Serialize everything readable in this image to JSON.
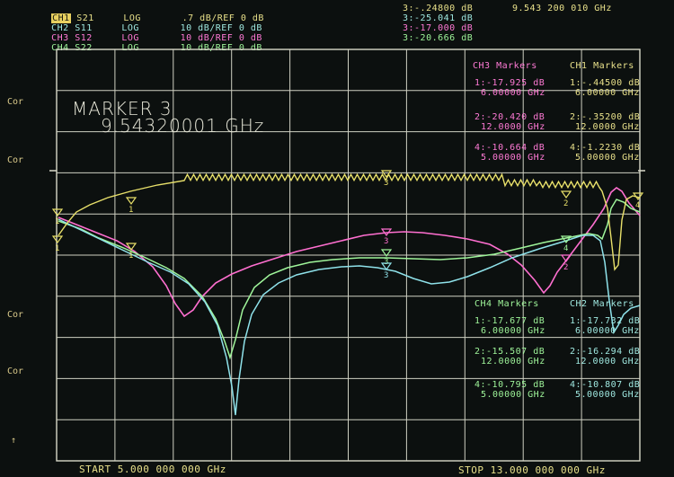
{
  "channels": [
    {
      "name": "CH1",
      "param": "S21",
      "fmt": "LOG",
      "scale": ".7 dB/REF 0 dB",
      "color": "#e8e08a",
      "active": true
    },
    {
      "name": "CH2",
      "param": "S11",
      "fmt": "LOG",
      "scale": "10 dB/REF 0 dB",
      "color": "#9fe8e0"
    },
    {
      "name": "CH3",
      "param": "S12",
      "fmt": "LOG",
      "scale": "10 dB/REF 0 dB",
      "color": "#ff7ad6"
    },
    {
      "name": "CH4",
      "param": "S22",
      "fmt": "LOG",
      "scale": "10 dB/REF 0 dB",
      "color": "#9ff59a"
    }
  ],
  "marker3_readout": [
    "3:-.24800 dB",
    "3:-25.041 dB",
    "3:-17.000 dB",
    "3:-20.666 dB"
  ],
  "marker3_freq_top": "9.543 200 010 GHz",
  "marker_title": "MARKER 3",
  "marker_freq": "9.54320001 GHz",
  "side_labels": [
    "Cor",
    "Cor",
    "Cor",
    "Cor",
    "↑"
  ],
  "ch3_markers": {
    "title": "CH3 Markers",
    "entries": [
      [
        "1:-17.925 dB",
        "6.00000 GHz"
      ],
      [
        "2:-20.420 dB",
        "12.0000 GHz"
      ],
      [
        "4:-10.664 dB",
        "5.00000 GHz"
      ]
    ]
  },
  "ch1_markers": {
    "title": "CH1 Markers",
    "entries": [
      [
        "1:-.44500 dB",
        "6.00000 GHz"
      ],
      [
        "2:-.35200 dB",
        "12.0000 GHz"
      ],
      [
        "4:-1.2230 dB",
        "5.00000 GHz"
      ]
    ]
  },
  "ch4_markers": {
    "title": "CH4 Markers",
    "entries": [
      [
        "1:-17.677 dB",
        "6.00000 GHz"
      ],
      [
        "2:-15.507 dB",
        "12.0000 GHz"
      ],
      [
        "4:-10.795 dB",
        "5.00000 GHz"
      ]
    ]
  },
  "ch2_markers": {
    "title": "CH2 Markers",
    "entries": [
      [
        "1:-17.732 dB",
        "6.00000 GHz"
      ],
      [
        "2:-16.294 dB",
        "12.0000 GHz"
      ],
      [
        "4:-10.807 dB",
        "5.00000 GHz"
      ]
    ]
  },
  "start_label": "START 5.000 000 000 GHz",
  "stop_label": "STOP 13.000 000 000 GHz",
  "marker_flags": [
    "1",
    "2",
    "3",
    "4"
  ]
}
